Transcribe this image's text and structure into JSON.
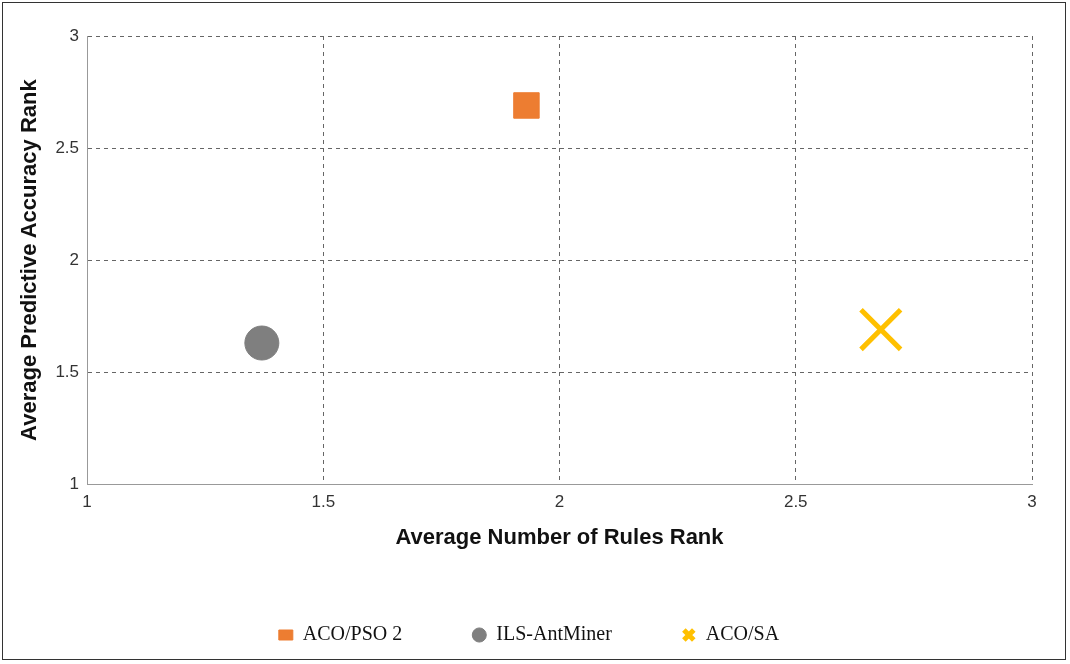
{
  "chart_data": {
    "type": "scatter",
    "xlabel": "Average Number of Rules Rank",
    "ylabel": "Average Predictive Accuracy Rank",
    "xlim": [
      1,
      3
    ],
    "xticks": [
      1,
      1.5,
      2,
      2.5,
      3
    ],
    "ylim": [
      1,
      3
    ],
    "yticks": [
      1,
      1.5,
      2,
      2.5,
      3
    ],
    "grid": true,
    "line_style": "dashed",
    "legend": "bottom",
    "series": [
      {
        "name": "ACO/PSO 2",
        "color": "#ed7d31",
        "marker": "square",
        "x": [
          1.93
        ],
        "values": [
          2.69
        ]
      },
      {
        "name": "ILS-AntMiner",
        "color": "#7f7f7f",
        "marker": "circle",
        "x": [
          1.37
        ],
        "values": [
          1.63
        ]
      },
      {
        "name": "ACO/SA",
        "color": "#ffc000",
        "marker": "cross",
        "x": [
          2.68
        ],
        "values": [
          1.69
        ]
      }
    ]
  }
}
